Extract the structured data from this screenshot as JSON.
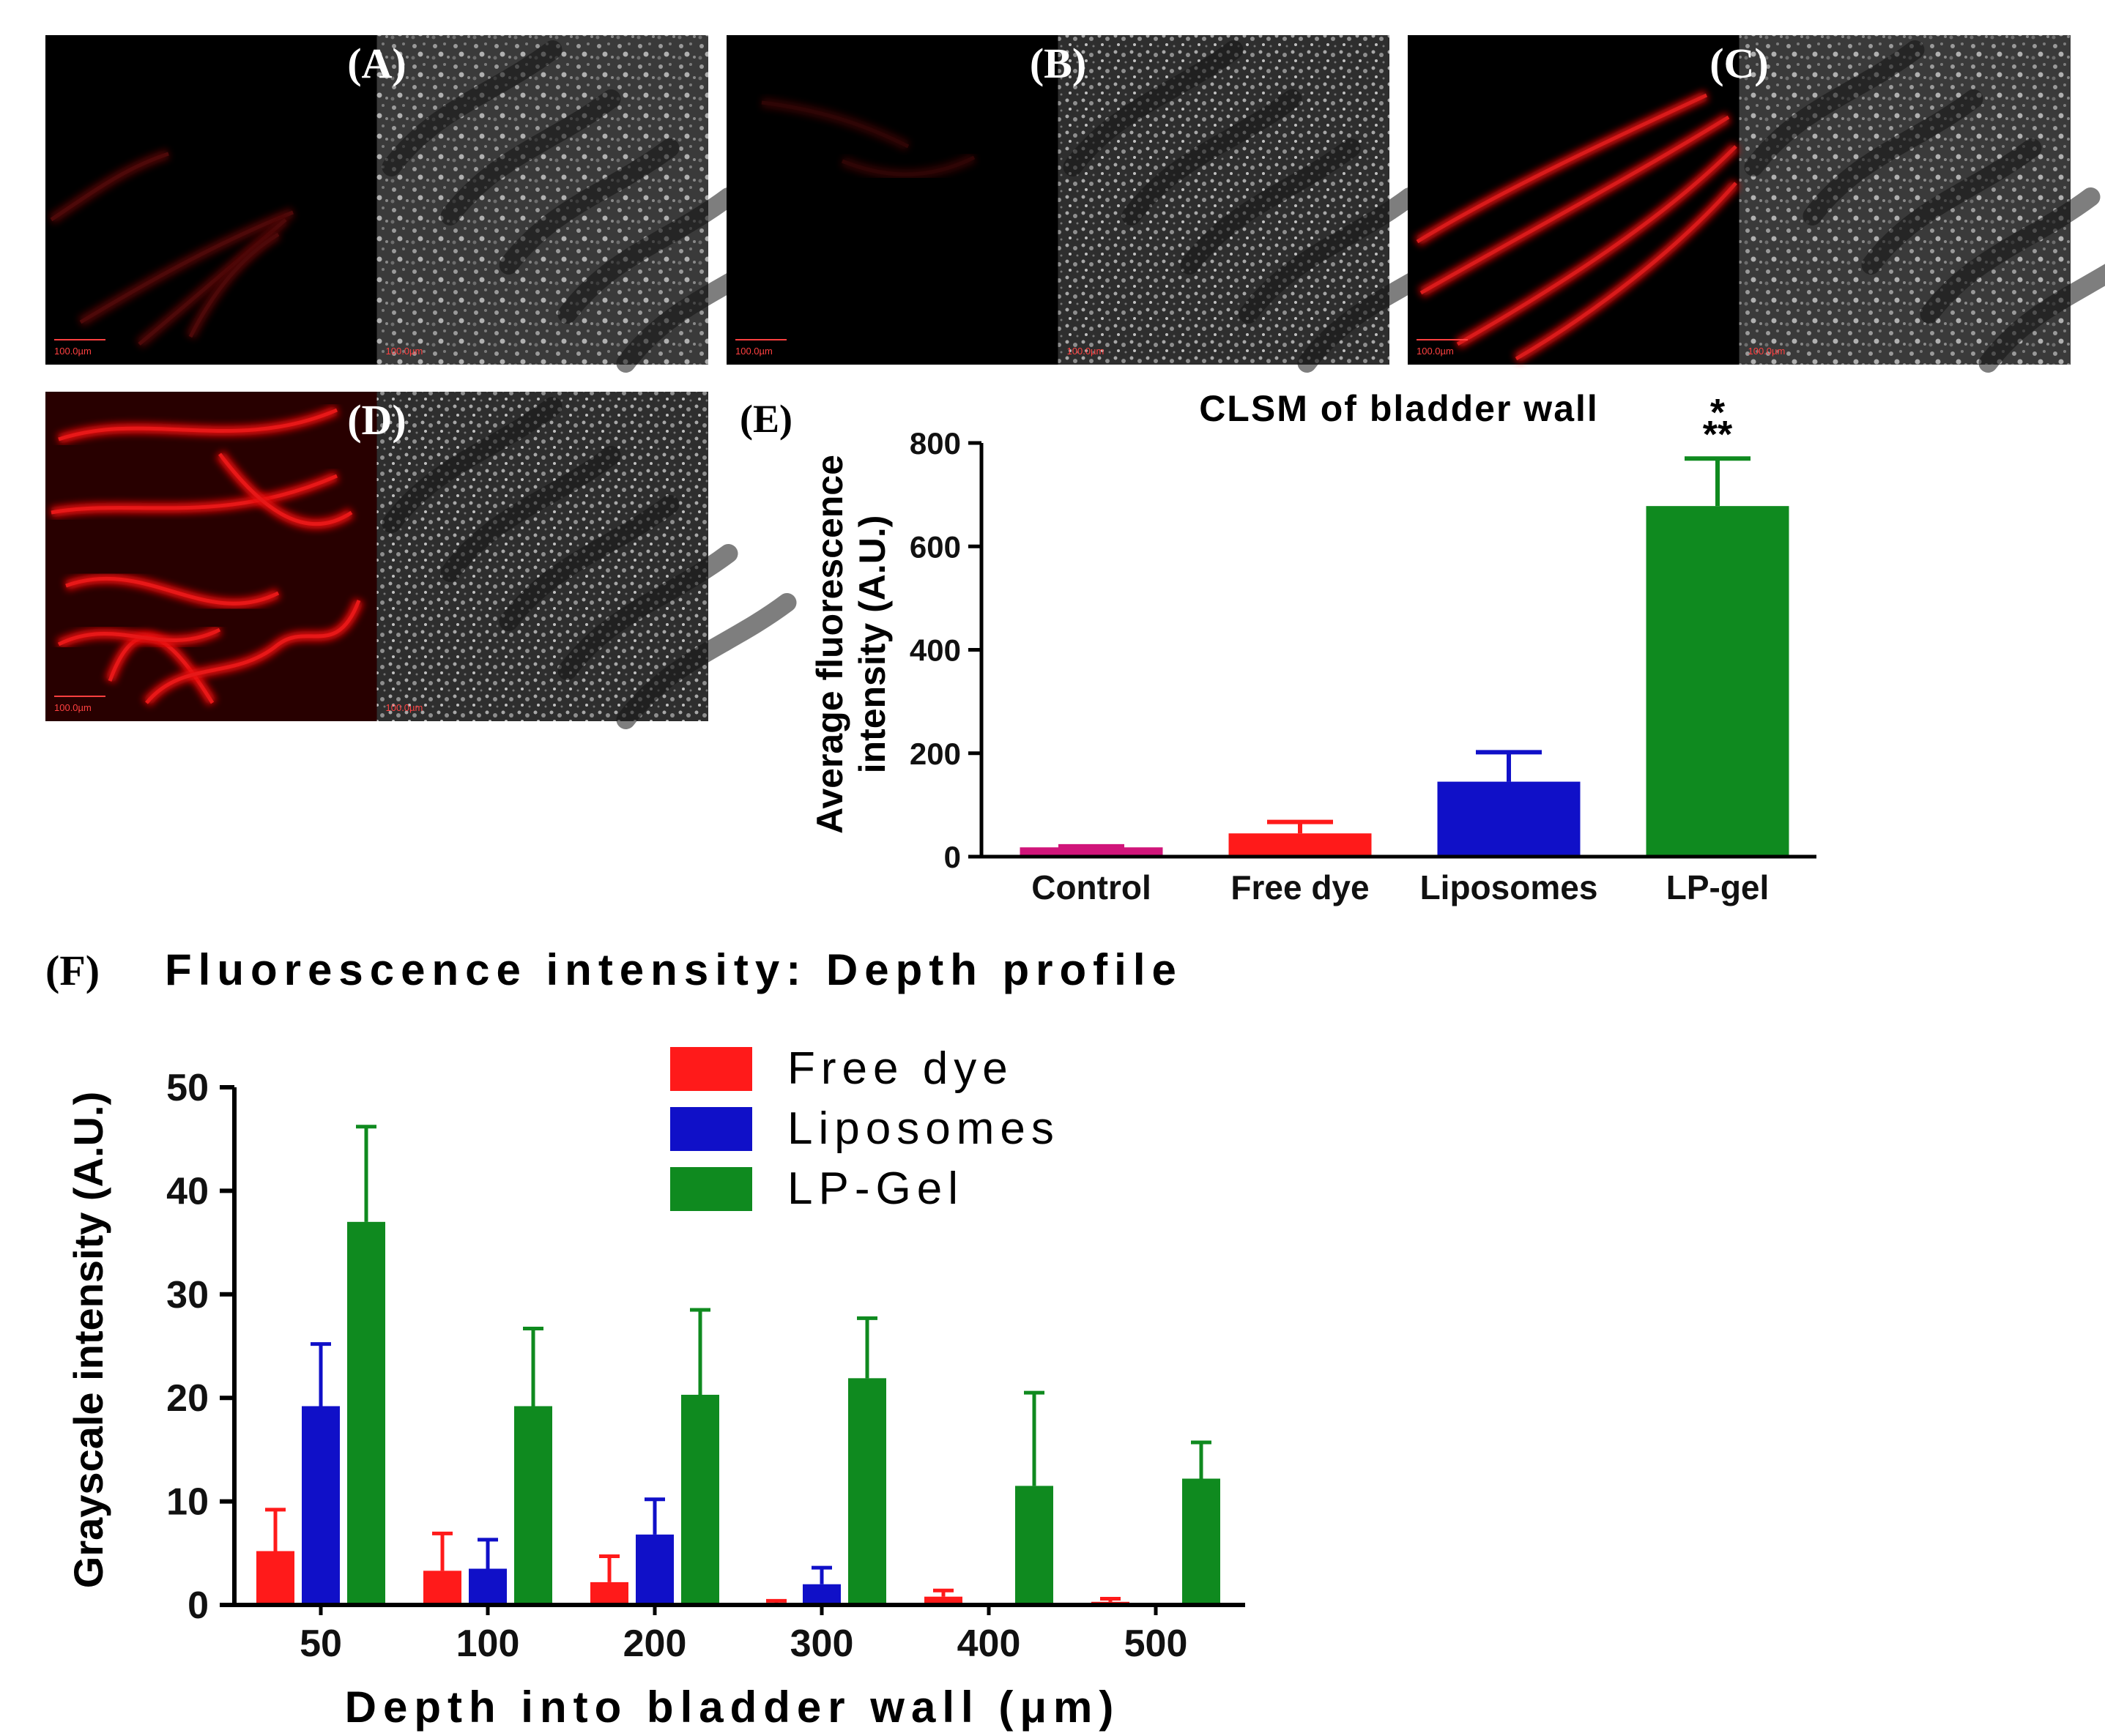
{
  "panels": [
    {
      "id": "A",
      "label": "(A)",
      "scale_bar": "100.0µm",
      "red_intensity": 0.3
    },
    {
      "id": "B",
      "label": "(B)",
      "scale_bar": "100.0µm",
      "red_intensity": 0.18
    },
    {
      "id": "C",
      "label": "(C)",
      "scale_bar": "100.0µm",
      "red_intensity": 0.85
    },
    {
      "id": "D",
      "label": "(D)",
      "scale_bar": "100.0µm",
      "red_intensity": 1.0
    }
  ],
  "chart_data": [
    {
      "panel_label": "(E)",
      "type": "bar",
      "title": "CLSM of bladder wall",
      "xlabel": "",
      "ylabel": "Average fluorescence intensity (A.U.)",
      "ylabel_lines": [
        "Average fluorescence",
        "intensity (A.U.)"
      ],
      "ylim": [
        0,
        800
      ],
      "yticks": [
        0,
        200,
        400,
        600,
        800
      ],
      "categories": [
        "Control",
        "Free dye",
        "Liposomes",
        "LP-gel"
      ],
      "values": [
        18,
        45,
        145,
        678
      ],
      "errors": [
        2,
        22,
        57,
        92
      ],
      "colors": [
        "#d0157a",
        "#ff1a1a",
        "#1010c8",
        "#0f8a1f"
      ],
      "significance": {
        "category": "LP-gel",
        "marks": [
          "*",
          "**"
        ]
      }
    },
    {
      "panel_label": "(F)",
      "type": "bar",
      "title": "Fluorescence intensity: Depth profile",
      "xlabel": "Depth into bladder wall (μm)",
      "ylabel": "Grayscale intensity (A.U.)",
      "ylim": [
        0,
        50
      ],
      "yticks": [
        0,
        10,
        20,
        30,
        40,
        50
      ],
      "categories": [
        "50",
        "100",
        "200",
        "300",
        "400",
        "500"
      ],
      "legend_position": "top-center",
      "series": [
        {
          "name": "Free dye",
          "color": "#ff1a1a",
          "values": [
            5.2,
            3.3,
            2.2,
            0.2,
            0.8,
            0.3
          ],
          "errors": [
            4.0,
            3.6,
            2.5,
            0.2,
            0.6,
            0.3
          ]
        },
        {
          "name": "Liposomes",
          "color": "#1010c8",
          "values": [
            19.2,
            3.5,
            6.8,
            2.0,
            0,
            0
          ],
          "errors": [
            6.0,
            2.8,
            3.4,
            1.6,
            0,
            0
          ]
        },
        {
          "name": "LP-Gel",
          "color": "#0f8a1f",
          "values": [
            37.0,
            19.2,
            20.3,
            21.9,
            11.5,
            12.2
          ],
          "errors": [
            9.2,
            7.5,
            8.2,
            5.8,
            9.0,
            3.5
          ]
        }
      ]
    }
  ]
}
